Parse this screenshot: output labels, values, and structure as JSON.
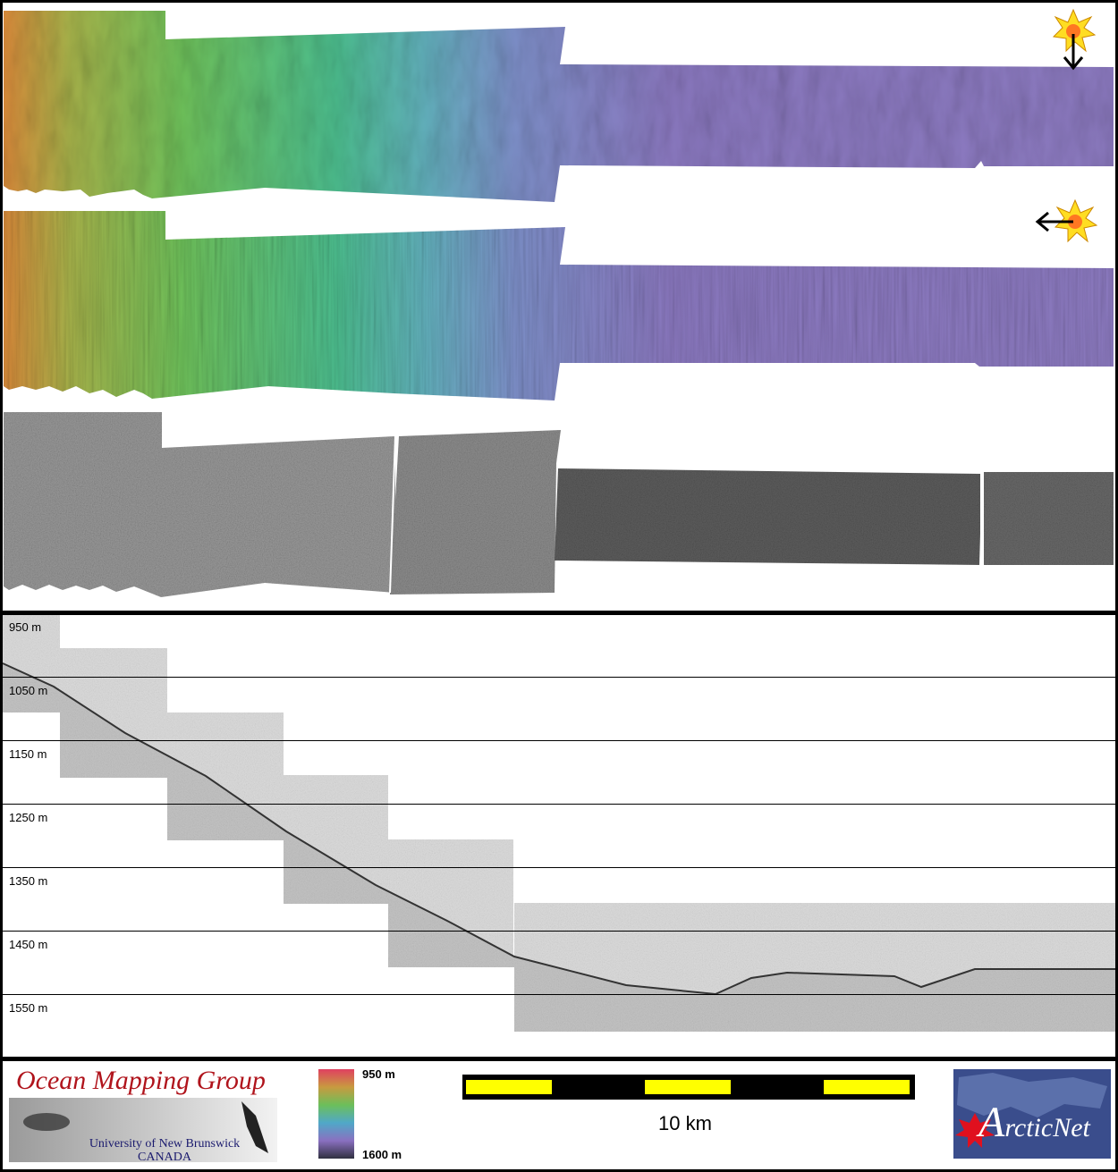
{
  "depth_labels": [
    "950 m",
    "1050 m",
    "1150 m",
    "1250 m",
    "1350 m",
    "1450 m",
    "1550 m"
  ],
  "legend": {
    "top_label": "950 m",
    "bottom_label": "1600 m"
  },
  "scale_bar": {
    "label": "10 km"
  },
  "logos": {
    "omg_title": "Ocean Mapping Group",
    "omg_sub1": "University of New Brunswick",
    "omg_sub2": "CANADA",
    "arcticnet_initial": "A",
    "arcticnet_rest": "rcticNet"
  },
  "icons": {
    "sun_north": "sun-illumination-icon",
    "sun_east": "sun-illumination-icon"
  },
  "colors": {
    "frame": "#000000",
    "scale_yellow": "#ffff00",
    "omg_red": "#b0141c",
    "arctic_blue": "#3a4d8c"
  }
}
